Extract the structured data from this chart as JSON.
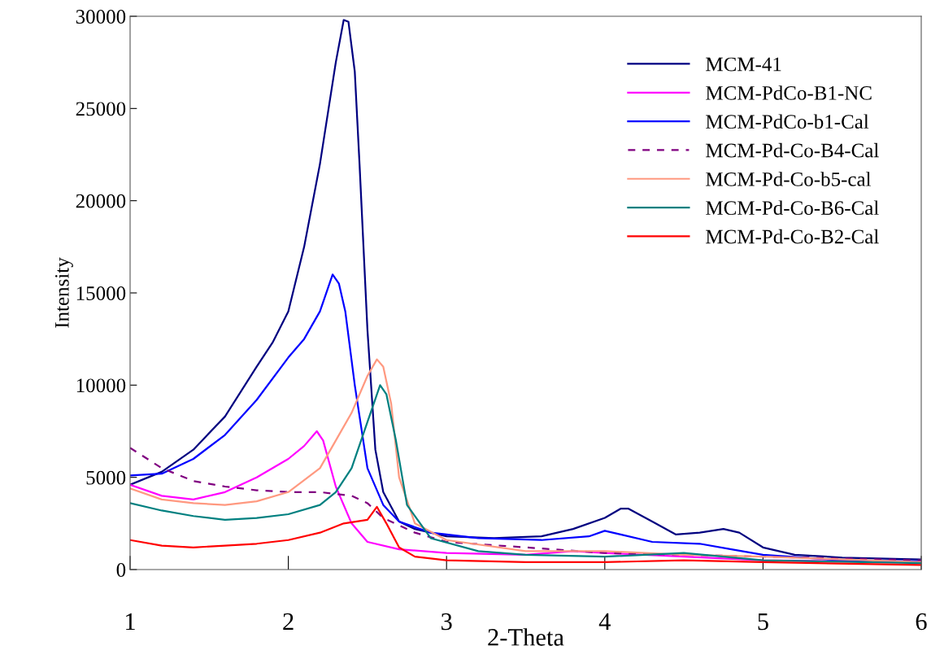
{
  "chart_data": {
    "type": "line",
    "xlabel": "2-Theta",
    "ylabel": "Intensity",
    "xlim": [
      1,
      6
    ],
    "ylim": [
      0,
      30000
    ],
    "xticks": [
      1,
      2,
      3,
      4,
      5,
      6
    ],
    "yticks": [
      0,
      5000,
      10000,
      15000,
      20000,
      25000,
      30000
    ],
    "grid": false,
    "legend": "top right",
    "marker": "none",
    "series": [
      {
        "name": "MCM-41",
        "color": "#000080",
        "line_style": "solid",
        "x": [
          1,
          1.2,
          1.4,
          1.6,
          1.8,
          1.9,
          2.0,
          2.1,
          2.2,
          2.3,
          2.35,
          2.38,
          2.42,
          2.45,
          2.5,
          2.55,
          2.6,
          2.7,
          2.8,
          3.0,
          3.3,
          3.6,
          3.8,
          4.0,
          4.1,
          4.15,
          4.3,
          4.45,
          4.6,
          4.75,
          4.85,
          5.0,
          5.2,
          5.5,
          6
        ],
        "values": [
          4600,
          5300,
          6500,
          8300,
          11000,
          12300,
          14000,
          17500,
          22000,
          27500,
          29800,
          29700,
          27000,
          22000,
          13000,
          6500,
          4200,
          2600,
          2200,
          1800,
          1700,
          1800,
          2200,
          2800,
          3300,
          3300,
          2600,
          1900,
          2000,
          2200,
          2000,
          1200,
          800,
          650,
          550
        ]
      },
      {
        "name": "MCM-PdCo-B1-NC",
        "color": "#ff00ff",
        "line_style": "solid",
        "x": [
          1,
          1.2,
          1.4,
          1.6,
          1.8,
          2.0,
          2.1,
          2.18,
          2.22,
          2.3,
          2.4,
          2.5,
          2.7,
          3.0,
          3.5,
          3.8,
          4.0,
          4.5,
          5.0,
          6
        ],
        "values": [
          4600,
          4000,
          3800,
          4200,
          5000,
          6000,
          6700,
          7500,
          7000,
          4500,
          2500,
          1500,
          1100,
          900,
          800,
          1000,
          900,
          700,
          500,
          400
        ]
      },
      {
        "name": "MCM-PdCo-b1-Cal",
        "color": "#0000ff",
        "line_style": "solid",
        "x": [
          1,
          1.2,
          1.4,
          1.6,
          1.8,
          2.0,
          2.1,
          2.2,
          2.28,
          2.32,
          2.36,
          2.42,
          2.5,
          2.6,
          2.7,
          2.9,
          3.2,
          3.6,
          3.9,
          4.0,
          4.1,
          4.3,
          4.6,
          4.8,
          5.0,
          5.5,
          6
        ],
        "values": [
          5100,
          5200,
          6000,
          7300,
          9200,
          11500,
          12500,
          14000,
          16000,
          15500,
          14000,
          10000,
          5500,
          3500,
          2600,
          2000,
          1700,
          1600,
          1800,
          2100,
          1900,
          1500,
          1400,
          1100,
          800,
          500,
          450
        ]
      },
      {
        "name": "MCM-Pd-Co-B4-Cal",
        "color": "#800080",
        "line_style": "dashed",
        "x": [
          1,
          1.2,
          1.4,
          1.6,
          1.8,
          2.0,
          2.2,
          2.4,
          2.5,
          2.6,
          2.8,
          3.0,
          3.5,
          4.0,
          4.5,
          5,
          6
        ],
        "values": [
          6600,
          5500,
          4800,
          4500,
          4300,
          4200,
          4200,
          4000,
          3600,
          2800,
          2000,
          1500,
          1200,
          900,
          800,
          700,
          500
        ]
      },
      {
        "name": "MCM-Pd-Co-b5-cal",
        "color": "#ff9980",
        "line_style": "solid",
        "x": [
          1,
          1.2,
          1.4,
          1.6,
          1.8,
          2.0,
          2.2,
          2.3,
          2.4,
          2.5,
          2.56,
          2.6,
          2.65,
          2.7,
          2.8,
          3.0,
          3.5,
          4.0,
          4.5,
          5,
          6
        ],
        "values": [
          4400,
          3800,
          3600,
          3500,
          3700,
          4200,
          5500,
          7000,
          8500,
          10500,
          11400,
          11000,
          9000,
          5000,
          2500,
          1600,
          1000,
          1000,
          800,
          700,
          400
        ]
      },
      {
        "name": "MCM-Pd-Co-B6-Cal",
        "color": "#008080",
        "line_style": "solid",
        "x": [
          1,
          1.2,
          1.4,
          1.6,
          1.8,
          2.0,
          2.2,
          2.3,
          2.4,
          2.5,
          2.58,
          2.62,
          2.68,
          2.75,
          2.9,
          3.2,
          3.5,
          4.0,
          4.5,
          5.0,
          6
        ],
        "values": [
          3600,
          3200,
          2900,
          2700,
          2800,
          3000,
          3500,
          4200,
          5500,
          8000,
          10000,
          9500,
          7000,
          3500,
          1700,
          1000,
          800,
          700,
          900,
          500,
          350
        ]
      },
      {
        "name": "MCM-Pd-Co-B2-Cal",
        "color": "#ff0000",
        "line_style": "solid",
        "x": [
          1,
          1.2,
          1.4,
          1.6,
          1.8,
          2.0,
          2.2,
          2.35,
          2.5,
          2.56,
          2.62,
          2.7,
          2.8,
          3.0,
          3.5,
          4.0,
          4.5,
          5,
          6
        ],
        "values": [
          1600,
          1300,
          1200,
          1300,
          1400,
          1600,
          2000,
          2500,
          2700,
          3400,
          2500,
          1200,
          700,
          500,
          400,
          400,
          500,
          400,
          250
        ]
      }
    ]
  }
}
